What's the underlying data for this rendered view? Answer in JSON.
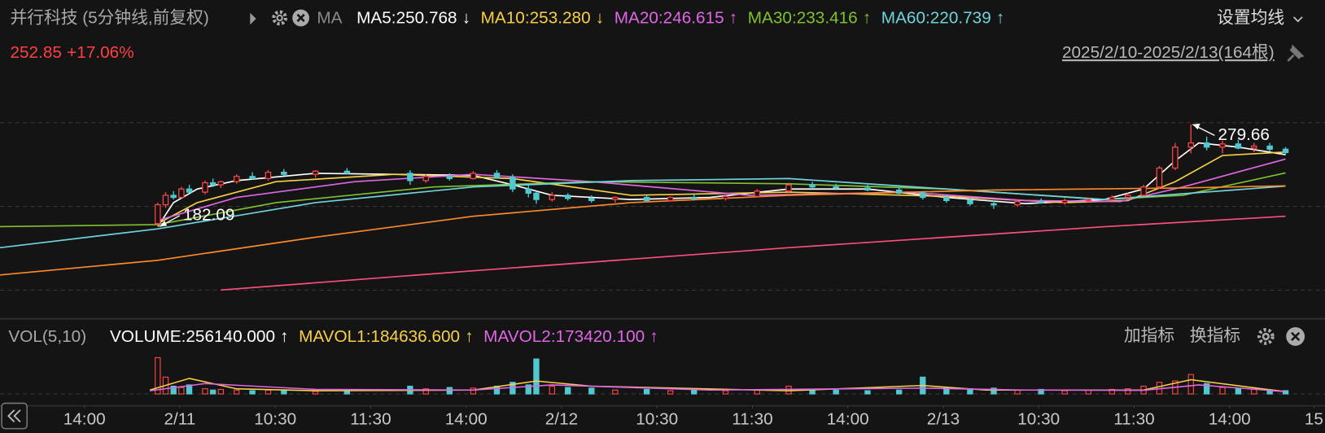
{
  "toolbar": {
    "title": "并行科技 (5分钟线,前复权)",
    "ma_label": "MA",
    "items": [
      {
        "text": "MA5:250.768",
        "arrow": "↓",
        "color": "#ffffff"
      },
      {
        "text": "MA10:253.280",
        "arrow": "↓",
        "color": "#f7d046"
      },
      {
        "text": "MA20:246.615",
        "arrow": "↑",
        "color": "#e066e6"
      },
      {
        "text": "MA30:233.416",
        "arrow": "↑",
        "color": "#7fc12e"
      },
      {
        "text": "MA60:220.739",
        "arrow": "↑",
        "color": "#6fd3dc"
      }
    ],
    "settings": "设置均线"
  },
  "price_tag": {
    "price": "252.85",
    "change": "+17.06%"
  },
  "range_label": "2025/2/10-2025/2/13(164根)",
  "volume_toolbar": {
    "label": "VOL(5,10)",
    "items": [
      {
        "text": "VOLUME:256140.000",
        "arrow": "↑",
        "color": "#ffffff"
      },
      {
        "text": "MAVOL1:184636.600",
        "arrow": "↑",
        "color": "#f7d046"
      },
      {
        "text": "MAVOL2:173420.100",
        "arrow": "↑",
        "color": "#e066e6"
      }
    ],
    "buttons": [
      "加指标",
      "换指标"
    ]
  },
  "chart_data": [
    {
      "type": "candlestick",
      "xlim": [
        0,
        168
      ],
      "ylim": [
        95.8,
        333.7
      ],
      "grid_lines": [
        121.6,
        201.4,
        281.3
      ],
      "up_color": "#ff4545",
      "down_color": "#4fc9cf",
      "x": [
        20,
        21,
        22,
        23,
        24,
        26,
        27,
        28,
        30,
        32,
        34,
        36,
        40,
        44,
        52,
        54,
        57,
        60,
        63,
        65,
        67,
        68,
        70,
        72,
        75,
        78,
        82,
        85,
        88,
        92,
        96,
        100,
        103,
        106,
        110,
        114,
        117,
        120,
        123,
        126,
        129,
        132,
        135,
        138,
        141,
        143,
        145,
        147,
        149,
        151,
        153,
        155,
        157,
        159,
        161,
        163
      ],
      "open": [
        185,
        203,
        212,
        210,
        218,
        215,
        224,
        222,
        225,
        230,
        228,
        234,
        232,
        235,
        233,
        226,
        230,
        228,
        233,
        229,
        218,
        214,
        208,
        212,
        209,
        208,
        210,
        207,
        210,
        209,
        211,
        216,
        222,
        220,
        219,
        217,
        214,
        210,
        207,
        204,
        203,
        206,
        205,
        207,
        208,
        210,
        212,
        220,
        238,
        258,
        262,
        258,
        261,
        257,
        259,
        256
      ],
      "high": [
        205,
        215,
        216,
        220,
        222,
        226,
        228,
        226,
        232,
        234,
        236,
        237,
        236,
        238,
        236,
        232,
        233,
        235,
        236,
        232,
        222,
        216,
        215,
        214,
        212,
        211,
        212,
        211,
        213,
        212,
        218,
        224,
        225,
        223,
        222,
        220,
        216,
        212,
        209,
        207,
        208,
        209,
        209,
        210,
        212,
        214,
        222,
        240,
        262,
        279.66,
        268,
        264,
        265,
        262,
        262,
        258
      ],
      "low": [
        182.09,
        200,
        208,
        209,
        214,
        213,
        220,
        219,
        223,
        227,
        226,
        231,
        229,
        232,
        222,
        224,
        226,
        227,
        228,
        215,
        210,
        204,
        206,
        207,
        205,
        205,
        206,
        206,
        207,
        207,
        210,
        214,
        218,
        217,
        216,
        213,
        208,
        205,
        202,
        199,
        201,
        204,
        203,
        205,
        207,
        209,
        211,
        218,
        236,
        252,
        255,
        252,
        256,
        253,
        254,
        251
      ],
      "close": [
        203,
        212,
        210,
        218,
        215,
        224,
        222,
        225,
        230,
        228,
        234,
        232,
        235,
        233,
        226,
        230,
        228,
        233,
        229,
        218,
        214,
        208,
        212,
        209,
        207,
        210,
        207,
        210,
        209,
        211,
        216,
        222,
        220,
        219,
        217,
        214,
        210,
        207,
        204,
        203,
        206,
        205,
        207,
        208,
        210,
        212,
        220,
        238,
        258,
        262,
        258,
        261,
        257,
        259,
        256,
        252.85
      ],
      "lines": [
        {
          "color": "#ffffff",
          "x": [
            20,
            22,
            25,
            30,
            40,
            50,
            60,
            65,
            70,
            80,
            90,
            100,
            110,
            120,
            130,
            140,
            145,
            149,
            152,
            157,
            163
          ],
          "values": [
            182.09,
            205,
            218,
            226,
            233,
            232,
            231,
            222,
            212,
            208,
            210,
            218,
            218,
            210,
            204,
            208,
            218,
            245,
            262,
            258,
            250.768
          ]
        },
        {
          "color": "#f7d046",
          "x": [
            20,
            25,
            35,
            50,
            65,
            80,
            100,
            120,
            135,
            143,
            149,
            155,
            163
          ],
          "values": [
            185,
            205,
            225,
            232,
            228,
            212,
            215,
            211,
            205,
            207,
            225,
            250,
            253.28
          ]
        },
        {
          "color": "#e066e6",
          "x": [
            20,
            30,
            45,
            60,
            75,
            95,
            115,
            130,
            142,
            150,
            163
          ],
          "values": [
            188,
            210,
            225,
            232,
            225,
            212,
            215,
            207,
            206,
            220,
            246.615
          ]
        },
        {
          "color": "#7fc12e",
          "x": [
            0,
            20,
            35,
            55,
            75,
            100,
            120,
            140,
            150,
            163
          ],
          "values": [
            182.09,
            184,
            205,
            220,
            225,
            223,
            218,
            208,
            212,
            233.416
          ]
        },
        {
          "color": "#6fd3dc",
          "x": [
            0,
            20,
            40,
            60,
            80,
            100,
            120,
            140,
            163
          ],
          "values": [
            162,
            180,
            205,
            220,
            226,
            228,
            218,
            208,
            220.739
          ]
        },
        {
          "color": "#ff8a2a",
          "x": [
            0,
            20,
            40,
            60,
            80,
            100,
            126,
            150,
            163
          ],
          "values": [
            136,
            150,
            172,
            192,
            205,
            212,
            217,
            219,
            221
          ]
        },
        {
          "color": "#ff4f7a",
          "x": [
            28,
            60,
            100,
            140,
            163
          ],
          "values": [
            121.6,
            140,
            162,
            182,
            192
          ]
        }
      ],
      "annotations": [
        {
          "x": 20,
          "value": 182.09
        },
        {
          "x": 151,
          "value": 279.66
        }
      ]
    },
    {
      "type": "bar",
      "xlim": [
        0,
        168
      ],
      "ylim": [
        0,
        3000000
      ],
      "x": [
        20,
        21,
        22,
        23,
        24,
        26,
        27,
        28,
        30,
        32,
        34,
        36,
        40,
        44,
        52,
        54,
        57,
        60,
        63,
        65,
        67,
        68,
        70,
        72,
        75,
        78,
        82,
        85,
        88,
        92,
        96,
        100,
        103,
        106,
        110,
        114,
        117,
        120,
        123,
        126,
        129,
        132,
        135,
        138,
        141,
        143,
        145,
        147,
        149,
        151,
        153,
        155,
        157,
        159,
        161,
        163
      ],
      "values": [
        2800000,
        1300000,
        600000,
        500000,
        700000,
        400000,
        300000,
        350000,
        300000,
        250000,
        300000,
        250000,
        200000,
        250000,
        600000,
        400000,
        500000,
        450000,
        600000,
        900000,
        700000,
        2700000,
        600000,
        500000,
        450000,
        300000,
        350000,
        250000,
        300000,
        250000,
        300000,
        600000,
        350000,
        300000,
        250000,
        300000,
        1300000,
        500000,
        400000,
        450000,
        300000,
        350000,
        250000,
        300000,
        350000,
        400000,
        600000,
        900000,
        1000000,
        1500000,
        800000,
        500000,
        400000,
        350000,
        300000,
        256140
      ],
      "lines": [
        {
          "color": "#f7d046",
          "x": [
            19,
            24,
            30,
            40,
            60,
            68,
            75,
            100,
            117,
            125,
            145,
            151,
            160,
            163
          ],
          "values": [
            300000,
            1200000,
            400000,
            250000,
            300000,
            1000000,
            600000,
            250000,
            650000,
            300000,
            300000,
            1100000,
            400000,
            184636.6
          ]
        },
        {
          "color": "#e066e6",
          "x": [
            19,
            26,
            40,
            60,
            70,
            90,
            117,
            130,
            145,
            152,
            163
          ],
          "values": [
            250000,
            800000,
            350000,
            300000,
            700000,
            300000,
            450000,
            300000,
            280000,
            700000,
            173420.1
          ]
        }
      ],
      "xticks": [
        {
          "value": 10.7,
          "label": "14:00"
        },
        {
          "value": 22.8,
          "label": "2/11"
        },
        {
          "value": 34.9,
          "label": "10:30"
        },
        {
          "value": 47,
          "label": "11:30"
        },
        {
          "value": 59.1,
          "label": "14:00"
        },
        {
          "value": 71.2,
          "label": "2/12"
        },
        {
          "value": 83.3,
          "label": "10:30"
        },
        {
          "value": 95.4,
          "label": "11:30"
        },
        {
          "value": 107.5,
          "label": "14:00"
        },
        {
          "value": 119.6,
          "label": "2/13"
        },
        {
          "value": 131.7,
          "label": "10:30"
        },
        {
          "value": 143.8,
          "label": "11:30"
        },
        {
          "value": 155.9,
          "label": "14:00"
        },
        {
          "value": 166.6,
          "label": "15"
        }
      ]
    }
  ]
}
